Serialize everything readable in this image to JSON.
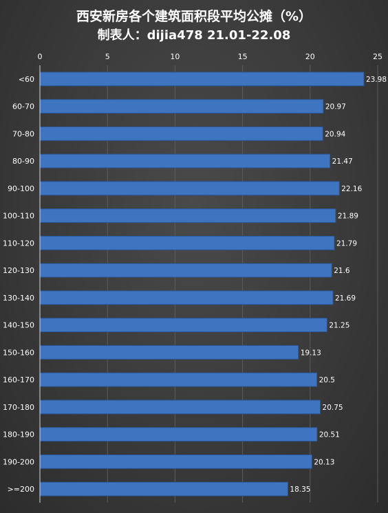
{
  "chart_data": {
    "type": "bar",
    "orientation": "horizontal",
    "title": "西安新房各个建筑面积段平均公摊（%）",
    "subtitle": "制表人：dijia478 21.01-22.08",
    "xlim": [
      0,
      25
    ],
    "xticks": [
      0,
      5,
      10,
      15,
      20,
      25
    ],
    "x_axis_position": "top",
    "grid": true,
    "categories": [
      "<60",
      "60-70",
      "70-80",
      "80-90",
      "90-100",
      "100-110",
      "110-120",
      "120-130",
      "130-140",
      "140-150",
      "150-160",
      "160-170",
      "170-180",
      "180-190",
      "190-200",
      ">=200"
    ],
    "values": [
      23.98,
      20.97,
      20.94,
      21.47,
      22.16,
      21.89,
      21.79,
      21.6,
      21.69,
      21.25,
      19.13,
      20.5,
      20.75,
      20.51,
      20.13,
      18.35
    ],
    "value_labels": [
      "23.98",
      "20.97",
      "20.94",
      "21.47",
      "22.16",
      "21.89",
      "21.79",
      "21.6",
      "21.69",
      "21.25",
      "19.13",
      "20.5",
      "20.75",
      "20.51",
      "20.13",
      "18.35"
    ],
    "colors": {
      "bar": "#3f75c0",
      "bar_edge": "#2a5598",
      "grid": "#5c5c5c",
      "axis": "#d9d9d9",
      "text": "#ffffff"
    }
  }
}
